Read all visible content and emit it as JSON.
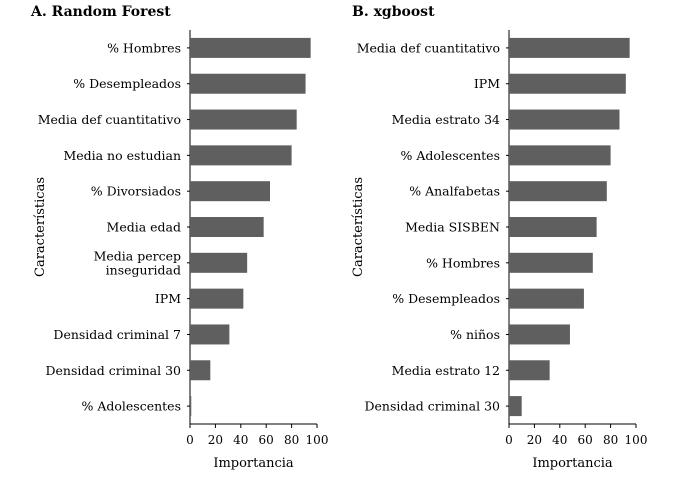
{
  "chart_data": [
    {
      "type": "bar",
      "orientation": "horizontal",
      "title": "A. Random Forest",
      "xlabel": "Importancia",
      "ylabel": "Características",
      "xlim": [
        0,
        100
      ],
      "xticks": [
        "0",
        "20",
        "40",
        "60",
        "80",
        "100"
      ],
      "categories": [
        "% Hombres",
        "% Desempleados",
        "Media def cuantitativo",
        "Media no estudian",
        "% Divorsiados",
        "Media edad",
        [
          "Media percep",
          "inseguridad"
        ],
        "IPM",
        "Densidad criminal 7",
        "Densidad criminal 30",
        "% Adolescentes"
      ],
      "values": [
        95,
        91,
        84,
        80,
        63,
        58,
        45,
        42,
        31,
        16,
        1
      ],
      "bar_color": "#5f5f5f",
      "grid": false
    },
    {
      "type": "bar",
      "orientation": "horizontal",
      "title": "B. xgboost",
      "xlabel": "Importancia",
      "ylabel": "Características",
      "xlim": [
        0,
        100
      ],
      "xticks": [
        "0",
        "20",
        "40",
        "60",
        "80",
        "100"
      ],
      "categories": [
        "Media def cuantitativo",
        "IPM",
        "Media estrato 34",
        "% Adolescentes",
        "% Analfabetas",
        "Media SISBEN",
        "% Hombres",
        "% Desempleados",
        "% niños",
        "Media estrato 12",
        "Densidad criminal 30"
      ],
      "values": [
        95,
        92,
        87,
        80,
        77,
        69,
        66,
        59,
        48,
        32,
        10
      ],
      "bar_color": "#5f5f5f",
      "grid": false
    }
  ]
}
